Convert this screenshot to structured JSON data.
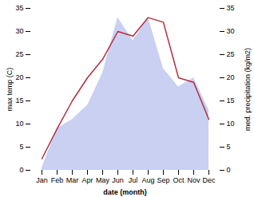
{
  "chart_data": {
    "type": "line",
    "categories": [
      "Jan",
      "Feb",
      "Mar",
      "Apr",
      "May",
      "Jun",
      "Jul",
      "Aug",
      "Sep",
      "Oct",
      "Nov",
      "Dec"
    ],
    "xlabel": "date (month)",
    "ylabel": "max temp (C)",
    "y2label": "med. precipitation (kg/m2)",
    "series": [
      {
        "type": "area",
        "axis": "y2",
        "color": "#c0c8f0",
        "values": [
          0.5,
          9.0,
          11.0,
          14.0,
          21.0,
          33.0,
          28.0,
          33.0,
          22.0,
          18.0,
          20.0,
          13.0
        ]
      },
      {
        "type": "line",
        "color": "#b03040",
        "values": [
          2.5,
          9.0,
          15.0,
          20.0,
          24.0,
          30.0,
          29.0,
          33.0,
          32.0,
          20.0,
          19.0,
          11.0
        ]
      }
    ],
    "ylim": [
      0,
      35
    ],
    "yticks": [
      0,
      5,
      10,
      15,
      20,
      25,
      30,
      35
    ],
    "y2lim": [
      0,
      35
    ],
    "y2ticks": [
      0,
      5,
      10,
      15,
      20,
      25,
      30,
      35
    ],
    "grid": false
  }
}
